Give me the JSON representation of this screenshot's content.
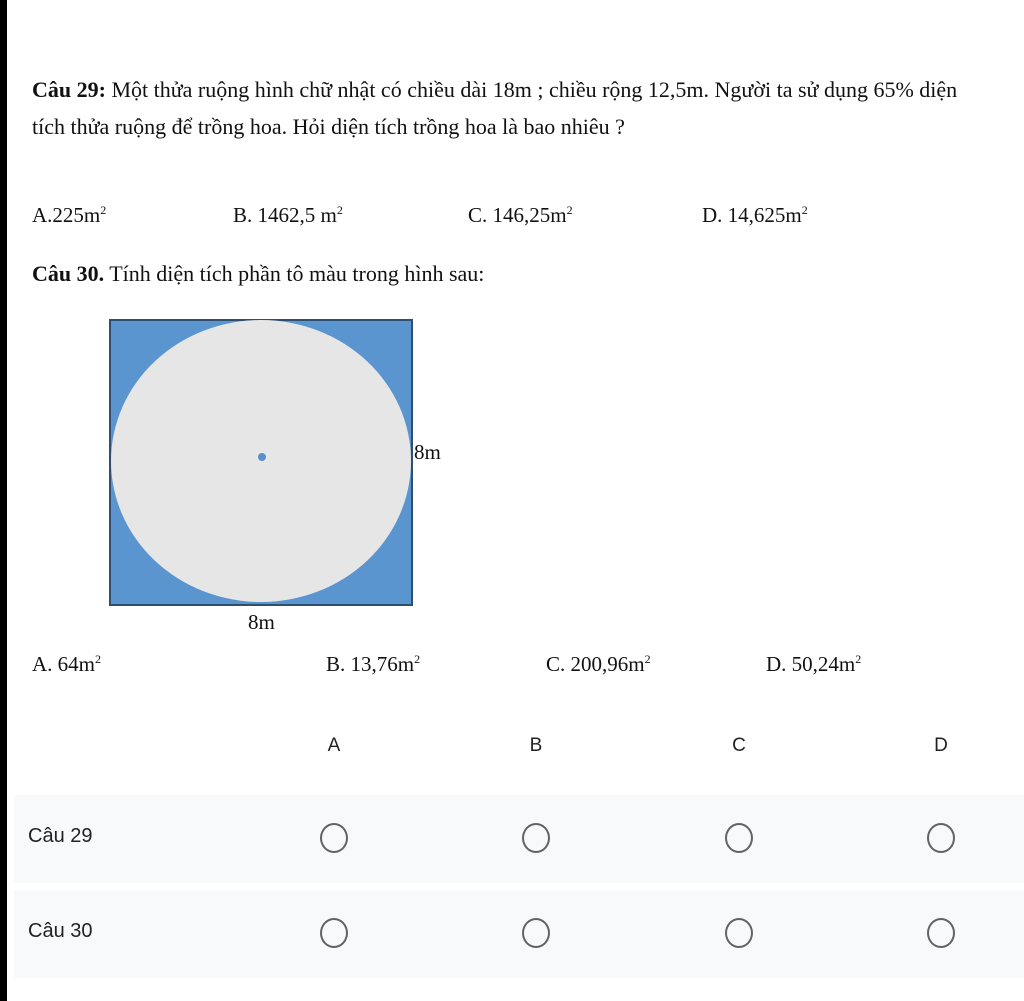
{
  "q29": {
    "label": "Câu 29:",
    "text": " Một thửa ruộng hình chữ nhật có chiều dài 18m ; chiều rộng 12,5m. Người ta sử dụng 65% diện tích thửa ruộng để trồng hoa. Hỏi diện tích trồng hoa là bao nhiêu ?",
    "options": [
      {
        "text": "A.225m",
        "sup": "2"
      },
      {
        "text": "B. 1462,5 m",
        "sup": "2"
      },
      {
        "text": "C. 146,25m",
        "sup": "2"
      },
      {
        "text": "D. 14,625m",
        "sup": "2"
      }
    ]
  },
  "q30": {
    "label": "Câu 30.",
    "text": " Tính diện tích phần tô màu trong hình sau:",
    "figure": {
      "side_label": "8m",
      "bottom_label": "8m",
      "fill_color": "#5b95d0",
      "circle_color": "#e6e6e6"
    },
    "options": [
      {
        "text": "A. 64m",
        "sup": "2"
      },
      {
        "text": "B. 13,76m",
        "sup": "2"
      },
      {
        "text": "C. 200,96m",
        "sup": "2"
      },
      {
        "text": "D. 50,24m",
        "sup": "2"
      }
    ]
  },
  "grid": {
    "columns": [
      "A",
      "B",
      "C",
      "D"
    ],
    "rows": [
      {
        "label": "Câu 29"
      },
      {
        "label": "Câu 30"
      }
    ]
  }
}
